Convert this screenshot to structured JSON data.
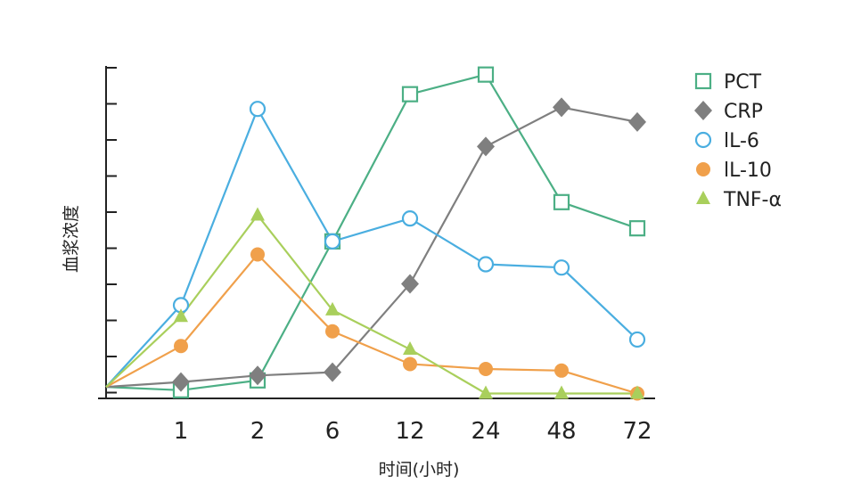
{
  "chart_data": {
    "type": "line",
    "categories": [
      "1",
      "2",
      "6",
      "12",
      "24",
      "48",
      "72"
    ],
    "xlabel": "时间(小时)",
    "ylabel": "血浆浓度",
    "ylim": [
      0,
      100
    ],
    "y_tick_labels_shown": false,
    "grid": false,
    "legend_position": "top-right",
    "series": [
      {
        "name": "PCT",
        "color": "#4caf85",
        "marker": "open-square",
        "values": [
          2.5,
          5.5,
          48,
          93,
          99,
          60,
          52
        ]
      },
      {
        "name": "CRP",
        "color": "#7f7f7f",
        "marker": "filled-diamond",
        "values": [
          5,
          7,
          8,
          35,
          77,
          89,
          84.5
        ]
      },
      {
        "name": "lL-6",
        "color": "#4aaee0",
        "marker": "open-circle",
        "values": [
          28.5,
          88.5,
          48,
          55,
          41,
          40,
          18
        ]
      },
      {
        "name": "lL-10",
        "color": "#f0a04b",
        "marker": "filled-circle",
        "values": [
          16,
          44,
          20.5,
          10.5,
          9,
          8.5,
          1.5
        ]
      },
      {
        "name": "TNF-α",
        "color": "#a9cf5c",
        "marker": "filled-triangle",
        "values": [
          25,
          56,
          27,
          15,
          1.5,
          1.5,
          1.5
        ]
      }
    ],
    "origin_value": 3.5
  }
}
